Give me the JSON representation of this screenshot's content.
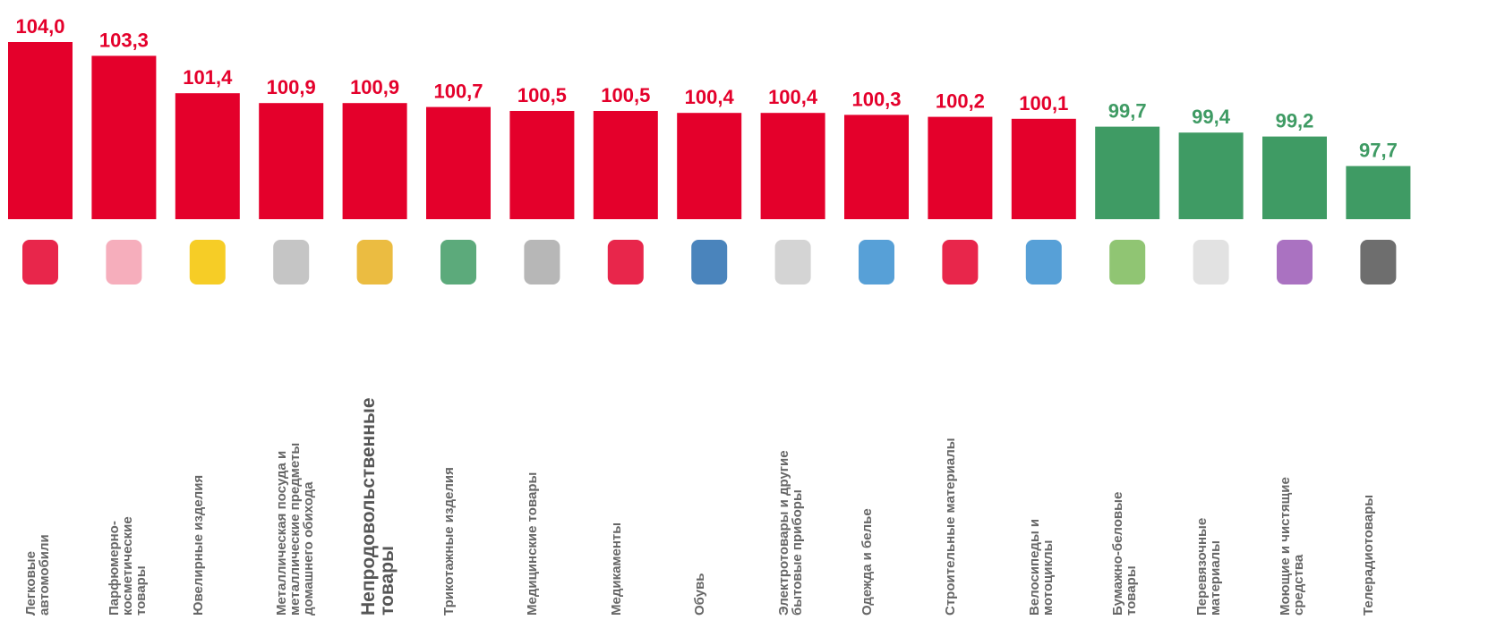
{
  "chart_data": {
    "type": "bar",
    "categories": [
      "Легковые\nавтомобили",
      "Парфюмерно-\nкосметические\nтовары",
      "Ювелирные изделия",
      "Металлическая посуда и\nметаллические предметы\nдомашнего обихода",
      "Непродовольственные\nтовары",
      "Трикотажные изделия",
      "Медицинские товары",
      "Медикаменты",
      "Обувь",
      "Электротовары и другие\nбытовые приборы",
      "Одежда и белье",
      "Строительные материалы",
      "Велосипеды и\nмотоциклы",
      "Бумажно-беловые\nтовары",
      "Перевязочные\nматериалы",
      "Моющие и чистящие\nсредства",
      "Телерадиотовары"
    ],
    "values": [
      104.0,
      103.3,
      101.4,
      100.9,
      100.9,
      100.7,
      100.5,
      100.5,
      100.4,
      100.4,
      100.3,
      100.2,
      100.1,
      99.7,
      99.4,
      99.2,
      97.7
    ],
    "value_labels": [
      "104,0",
      "103,3",
      "101,4",
      "100,9",
      "100,9",
      "100,7",
      "100,5",
      "100,5",
      "100,4",
      "100,4",
      "100,3",
      "100,2",
      "100,1",
      "99,7",
      "99,4",
      "99,2",
      "97,7"
    ],
    "colors": [
      "#e4002b",
      "#e4002b",
      "#e4002b",
      "#e4002b",
      "#e4002b",
      "#e4002b",
      "#e4002b",
      "#e4002b",
      "#e4002b",
      "#e4002b",
      "#e4002b",
      "#e4002b",
      "#e4002b",
      "#3f9b64",
      "#3f9b64",
      "#3f9b64",
      "#3f9b64"
    ],
    "ylim": [
      95,
      106
    ]
  }
}
